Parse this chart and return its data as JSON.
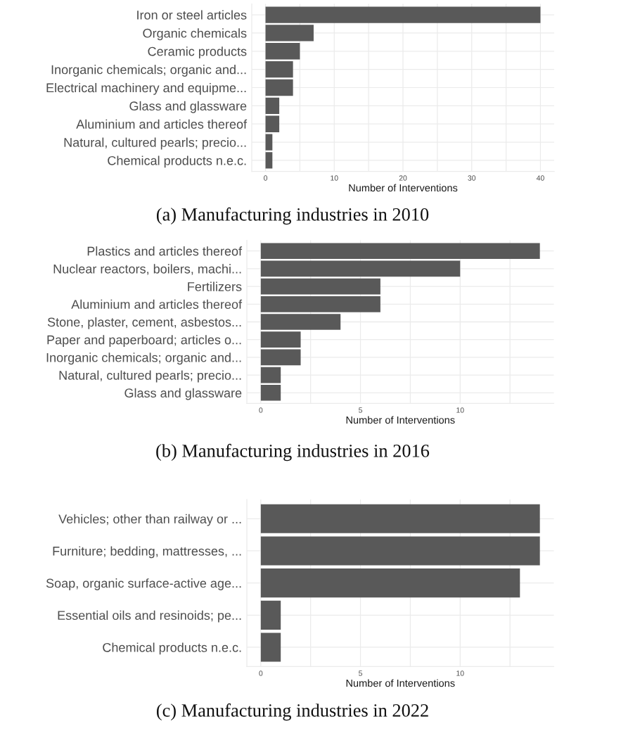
{
  "chart_data": [
    {
      "type": "bar",
      "orientation": "horizontal",
      "title": "(a) Manufacturing industries in 2010",
      "xlabel": "Number of Interventions",
      "categories": [
        "Iron or steel articles",
        "Organic chemicals",
        "Ceramic products",
        "Inorganic chemicals; organic and...",
        "Electrical machinery and equipme...",
        "Glass and glassware",
        "Aluminium and articles thereof",
        "Natural, cultured pearls; precio...",
        "Chemical products n.e.c."
      ],
      "values": [
        40,
        7,
        5,
        4,
        4,
        2,
        2,
        1,
        1
      ],
      "color": "#595959",
      "xlim": [
        -2,
        42
      ],
      "xticks": [
        0,
        {
          "value": 5,
          "label": null
        },
        10,
        {
          "value": 15,
          "label": null
        },
        20,
        {
          "value": 25,
          "label": null
        },
        30,
        {
          "value": 35,
          "label": null
        },
        40
      ],
      "grid": true
    },
    {
      "type": "bar",
      "orientation": "horizontal",
      "title": "(b) Manufacturing industries in 2016",
      "xlabel": "Number of Interventions",
      "categories": [
        "Plastics and articles thereof",
        "Nuclear reactors, boilers, machi...",
        "Fertilizers",
        "Aluminium and articles thereof",
        "Stone, plaster, cement, asbestos...",
        "Paper and paperboard; articles o...",
        "Inorganic chemicals; organic and...",
        "Natural, cultured pearls; precio...",
        "Glass and glassware"
      ],
      "values": [
        14,
        10,
        6,
        6,
        4,
        2,
        2,
        1,
        1
      ],
      "color": "#595959",
      "xlim": [
        -0.7,
        14.7
      ],
      "xticks": [
        0,
        {
          "value": 2.5,
          "label": null
        },
        5,
        {
          "value": 7.5,
          "label": null
        },
        10,
        {
          "value": 12.5,
          "label": null
        }
      ],
      "grid": true
    },
    {
      "type": "bar",
      "orientation": "horizontal",
      "title": "(c) Manufacturing industries in 2022",
      "xlabel": "Number of Interventions",
      "categories": [
        "Vehicles; other than railway or ...",
        "Furniture; bedding, mattresses, ...",
        "Soap, organic surface-active age...",
        "Essential oils and resinoids; pe...",
        "Chemical products n.e.c."
      ],
      "values": [
        14,
        14,
        13,
        1,
        1
      ],
      "color": "#595959",
      "xlim": [
        -0.7,
        14.7
      ],
      "xticks": [
        0,
        {
          "value": 2.5,
          "label": null
        },
        5,
        {
          "value": 7.5,
          "label": null
        },
        10,
        {
          "value": 12.5,
          "label": null
        }
      ],
      "grid": true
    }
  ]
}
